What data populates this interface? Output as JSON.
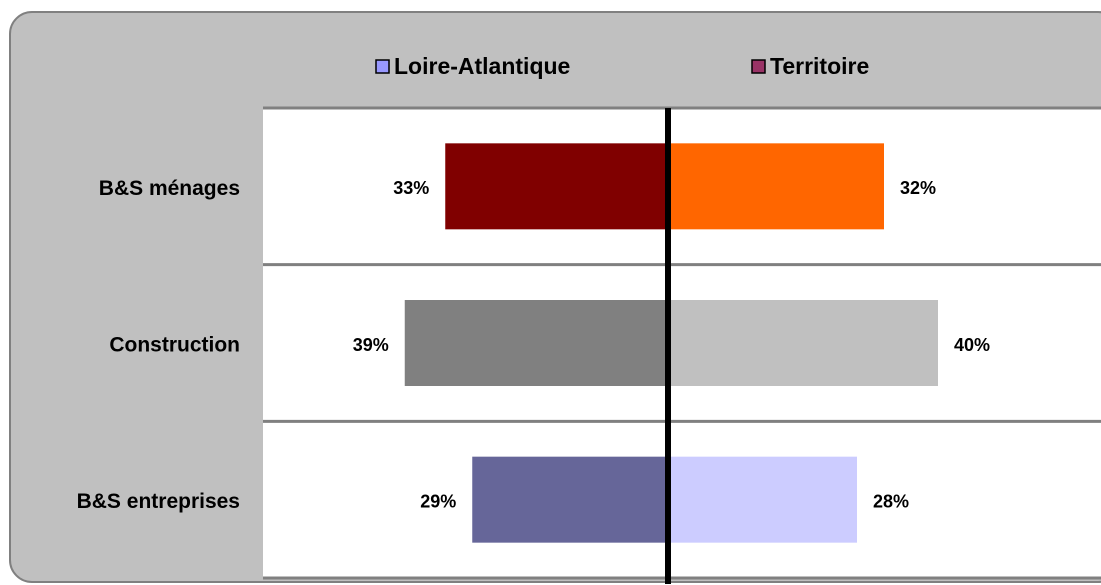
{
  "chart_data": {
    "type": "butterfly",
    "categories": [
      "B&S ménages",
      "Construction",
      "B&S entreprises"
    ],
    "series": [
      {
        "name": "Loire-Atlantique",
        "color": "#9999ff",
        "side": "left",
        "values": [
          33,
          39,
          29
        ],
        "value_labels": [
          "33%",
          "39%",
          "29%"
        ],
        "colors": [
          "#800000",
          "#808080",
          "#666699"
        ]
      },
      {
        "name": "Territoire",
        "color": "#993366",
        "side": "right",
        "values": [
          32,
          40,
          28
        ],
        "value_labels": [
          "32%",
          "40%",
          "28%"
        ],
        "colors": [
          "#ff6600",
          "#c0c0c0",
          "#ccccff"
        ]
      }
    ],
    "grid": true,
    "legend": "top"
  }
}
